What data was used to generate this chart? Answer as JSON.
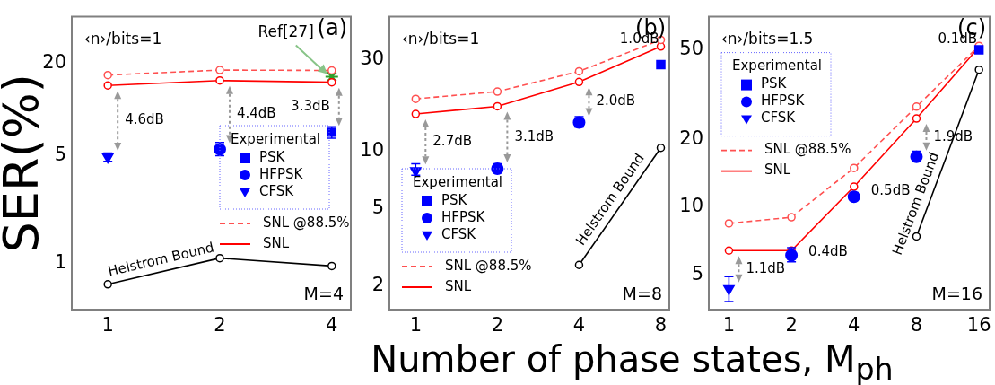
{
  "chart_data": [
    {
      "type": "scatter",
      "ylabel": "SER(%)",
      "log": "xy",
      "grid": false,
      "legend": "bottom right",
      "legend_title": "Experimental",
      "x": [
        1,
        2,
        4
      ],
      "xlim": [
        0.8,
        4.5
      ],
      "xticks": [
        1,
        2,
        4
      ],
      "ylim": [
        0.5,
        40
      ],
      "yticks": [
        1,
        5,
        20
      ],
      "series": [
        {
          "name": "PSK",
          "marker": "square",
          "color": "#0000ff",
          "values": [
            null,
            null,
            7.1
          ],
          "errors": [
            null,
            null,
            [
              6.5,
              7.7
            ]
          ]
        },
        {
          "name": "HFPSK",
          "marker": "circle",
          "color": "#0000ff",
          "values": [
            null,
            5.5,
            null
          ],
          "errors": [
            null,
            [
              5.0,
              6.1
            ],
            null
          ]
        },
        {
          "name": "CFSK",
          "marker": "triangle",
          "color": "#0000ff",
          "values": [
            4.9,
            null,
            null
          ],
          "errors": [
            [
              4.6,
              5.2
            ],
            null,
            null
          ]
        },
        {
          "name": "SNL @88.5%",
          "type": "line",
          "marker": "circle",
          "line_style": "dashed",
          "color": "#ff5050",
          "values": [
            16.7,
            18.0,
            17.9
          ]
        },
        {
          "name": "SNL",
          "type": "line",
          "marker": "circle",
          "line_style": "solid",
          "color": "#ff0000",
          "values": [
            14.3,
            15.4,
            15.0
          ]
        },
        {
          "type": "line",
          "marker": "circle",
          "line_style": "solid",
          "color": "#000000",
          "values": [
            0.73,
            1.08,
            0.96
          ]
        },
        {
          "marker": "cross",
          "color": "#2ca02c",
          "values": [
            null,
            null,
            16.3
          ]
        }
      ],
      "annotations": [
        "‹n›/bits=1",
        "(a)",
        "M=4",
        {
          "text": "4.6dB",
          "x": 1,
          "y": 4.9
        },
        {
          "text": "4.4dB",
          "x": 2,
          "y": 5.5
        },
        {
          "text": "3.3dB",
          "x": 4,
          "y": 7.1
        },
        {
          "text": "Ref[27]",
          "x": 4,
          "y": 16.3
        },
        {
          "text": "Helstrom Bound",
          "x": 1.414,
          "y": 0.888
        }
      ]
    },
    {
      "type": "scatter",
      "xlabel": "Number of phase states, M$_{ph}$",
      "log": "xy",
      "grid": false,
      "legend": "bottom left",
      "legend_title": "Experimental",
      "x": [
        1,
        2,
        4,
        8
      ],
      "xlim": [
        0.8,
        8.6
      ],
      "xticks": [
        1,
        2,
        4,
        8
      ],
      "ylim": [
        1.5,
        50
      ],
      "yticks": [
        2,
        5,
        10,
        30
      ],
      "series": [
        {
          "name": "PSK",
          "marker": "square",
          "color": "#0000ff",
          "values": [
            null,
            null,
            null,
            28.2
          ]
        },
        {
          "name": "HFPSK",
          "marker": "circle",
          "color": "#0000ff",
          "values": [
            null,
            8.1,
            14.1,
            null
          ],
          "errors": [
            null,
            [
              7.7,
              8.6
            ],
            [
              13.3,
              15.1
            ],
            null
          ]
        },
        {
          "name": "CFSK",
          "marker": "triangle",
          "color": "#0000ff",
          "values": [
            7.9,
            null,
            null,
            null
          ],
          "errors": [
            [
              7.5,
              8.6
            ],
            null,
            null,
            null
          ]
        },
        {
          "name": "SNL @88.5%",
          "type": "line",
          "marker": "circle",
          "line_style": "dashed",
          "color": "#ff5050",
          "values": [
            18.7,
            20.4,
            26.0,
            37.9
          ]
        },
        {
          "name": "SNL",
          "type": "line",
          "marker": "circle",
          "line_style": "solid",
          "color": "#ff0000",
          "values": [
            15.6,
            17.1,
            22.9,
            35.0
          ]
        },
        {
          "type": "line",
          "marker": "circle",
          "line_style": "solid",
          "color": "#000000",
          "values": [
            null,
            null,
            2.56,
            10.4
          ]
        }
      ],
      "annotations": [
        "‹n›/bits=1",
        "(b)",
        "M=8",
        {
          "text": "2.7dB",
          "x": 1,
          "y": 7.9
        },
        {
          "text": "3.1dB",
          "x": 2,
          "y": 8.1
        },
        {
          "text": "2.0dB",
          "x": 4,
          "y": 14.1
        },
        {
          "text": "1.0dB",
          "x": 8,
          "y": 28.2
        },
        {
          "text": "Helstrom Bound",
          "x": 5.66,
          "y": 5.16
        }
      ]
    },
    {
      "type": "scatter",
      "log": "xy",
      "grid": false,
      "legend": "top left",
      "legend_title": "Experimental",
      "x": [
        1,
        2,
        4,
        8,
        16
      ],
      "xlim": [
        0.8,
        18
      ],
      "xticks": [
        1,
        2,
        4,
        8,
        16
      ],
      "ylim": [
        3.5,
        70
      ],
      "yticks": [
        5,
        10,
        20,
        50
      ],
      "series": [
        {
          "name": "PSK",
          "marker": "square",
          "color": "#0000ff",
          "values": [
            null,
            null,
            null,
            null,
            49.9
          ]
        },
        {
          "name": "HFPSK",
          "marker": "circle",
          "color": "#0000ff",
          "values": [
            null,
            6.1,
            11.1,
            16.7,
            null
          ],
          "errors": [
            null,
            [
              5.7,
              6.6
            ],
            [
              10.8,
              11.6
            ],
            [
              16.0,
              17.7
            ],
            null
          ]
        },
        {
          "name": "CFSK",
          "marker": "triangle",
          "color": "#0000ff",
          "values": [
            4.33,
            null,
            null,
            null,
            null
          ],
          "errors": [
            [
              3.8,
              4.9
            ],
            null,
            null,
            null,
            null
          ]
        },
        {
          "name": "SNL @88.5%",
          "type": "line",
          "marker": "circle",
          "line_style": "dashed",
          "color": "#ff5050",
          "values": [
            8.45,
            9.0,
            14.9,
            27.9,
            51.9
          ]
        },
        {
          "name": "SNL",
          "type": "line",
          "marker": "circle",
          "line_style": "solid",
          "color": "#ff0000",
          "values": [
            6.4,
            6.4,
            12.3,
            24.7,
            51.3
          ]
        },
        {
          "type": "line",
          "marker": "circle",
          "line_style": "solid",
          "color": "#000000",
          "values": [
            null,
            null,
            null,
            7.4,
            40.7
          ]
        }
      ],
      "annotations": [
        "‹n›/bits=1.5",
        "(c)",
        "M=16",
        {
          "text": "1.1dB",
          "x": 1,
          "y": 4.33
        },
        {
          "text": "0.4dB",
          "x": 2,
          "y": 6.1
        },
        {
          "text": "0.5dB",
          "x": 4,
          "y": 11.1
        },
        {
          "text": "1.9dB",
          "x": 8,
          "y": 16.7
        },
        {
          "text": "0.1dB",
          "x": 16,
          "y": 49.9
        },
        {
          "text": "Helstrom Bound",
          "x": 9,
          "y": 9.9
        }
      ]
    }
  ]
}
